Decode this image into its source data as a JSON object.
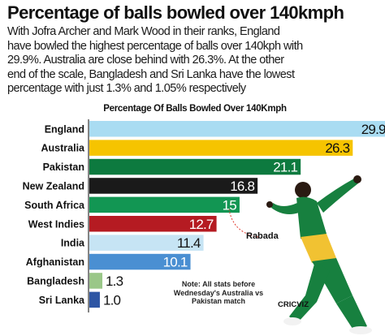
{
  "header": {
    "title": "Percentage of balls bowled over 140kmph",
    "intro_lines": [
      "With Jofra Archer and Mark Wood in their ranks, England",
      "have bowled the highest percentage of balls over 140kph with",
      "29.9%. Australia are close behind with 26.3%. At the other",
      "end of the scale, Bangladesh and Sri Lanka have the lowest",
      "percentage with just 1.3% and 1.05% respectively"
    ]
  },
  "chart_data": {
    "type": "bar",
    "orientation": "horizontal",
    "title": "Percentage Of Balls Bowled Over 140Kmph",
    "categories": [
      "England",
      "Australia",
      "Pakistan",
      "New Zealand",
      "South Africa",
      "West Indies",
      "India",
      "Afghanistan",
      "Bangladesh",
      "Sri Lanka"
    ],
    "values": [
      29.9,
      26.3,
      21.1,
      16.8,
      15,
      12.7,
      11.4,
      10.1,
      1.3,
      1.05
    ],
    "value_labels": [
      "29.9",
      "26.3",
      "21.1",
      "16.8",
      "15",
      "12.7",
      "11.4",
      "10.1",
      "1.3",
      "1.0"
    ],
    "colors": [
      "#a9dcf2",
      "#f6c400",
      "#0d7a3f",
      "#1a1a1a",
      "#129653",
      "#b51b22",
      "#c6e4f4",
      "#4a8fd2",
      "#9ac788",
      "#2d55a4"
    ],
    "value_label_colors": [
      "#111111",
      "#111111",
      "#ffffff",
      "#ffffff",
      "#ffffff",
      "#ffffff",
      "#111111",
      "#ffffff",
      "#111111",
      "#111111"
    ],
    "xlim": [
      0,
      30
    ],
    "grid": false,
    "legend": "none"
  },
  "annotations": {
    "note": "Note: All stats before Wednesday's Australia vs Pakistan match",
    "player_name": "Rabada",
    "credit": "CRICVIZ"
  }
}
